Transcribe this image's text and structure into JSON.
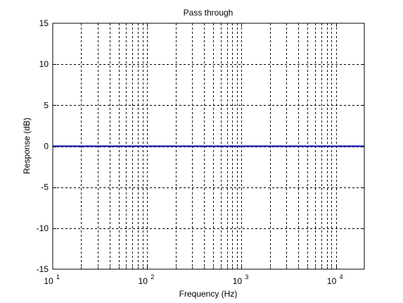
{
  "chart_data": {
    "type": "line",
    "title": "Pass through",
    "xlabel": "Frequency (Hz)",
    "ylabel": "Response (dB)",
    "x_scale": "log",
    "xlim": [
      10,
      20000
    ],
    "ylim": [
      -15,
      15
    ],
    "yticks": [
      15,
      10,
      5,
      0,
      -5,
      -10,
      -15
    ],
    "xticks": [
      {
        "value": 10,
        "base": "10",
        "exp": "1"
      },
      {
        "value": 100,
        "base": "10",
        "exp": "2"
      },
      {
        "value": 1000,
        "base": "10",
        "exp": "3"
      },
      {
        "value": 10000,
        "base": "10",
        "exp": "4"
      }
    ],
    "grid": true,
    "series": [
      {
        "x": [
          10,
          20000
        ],
        "y": [
          0,
          0
        ],
        "color": "#0000b0"
      }
    ]
  }
}
